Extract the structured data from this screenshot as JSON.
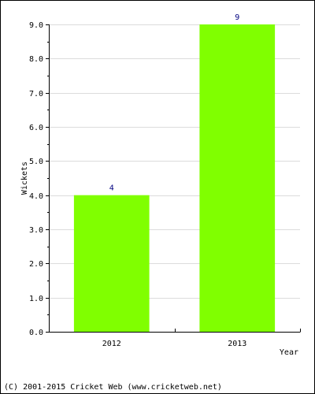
{
  "chart_data": {
    "type": "bar",
    "categories": [
      "2012",
      "2013"
    ],
    "values": [
      4,
      9
    ],
    "data_labels": [
      "4",
      "9"
    ],
    "title": "",
    "xlabel": "Year",
    "ylabel": "Wickets",
    "ylim": [
      0,
      9
    ],
    "y_ticks": [
      "0.0",
      "1.0",
      "2.0",
      "3.0",
      "4.0",
      "5.0",
      "6.0",
      "7.0",
      "8.0",
      "9.0"
    ],
    "grid": true,
    "legend": "none",
    "bar_color": "#80ff00",
    "data_label_color": "#000080"
  },
  "footer": {
    "copyright": "(C) 2001-2015 Cricket Web (www.cricketweb.net)"
  }
}
